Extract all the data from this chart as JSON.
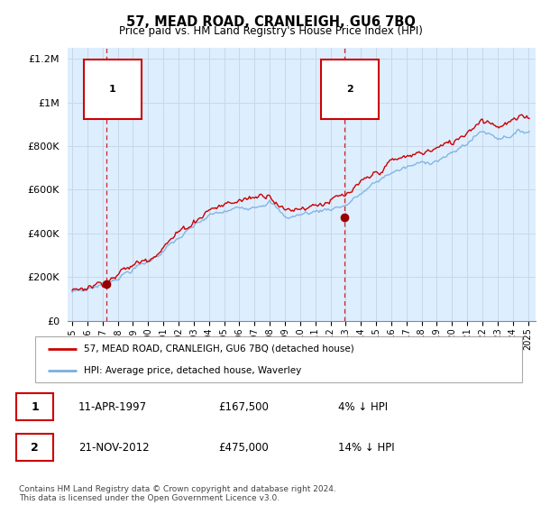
{
  "title": "57, MEAD ROAD, CRANLEIGH, GU6 7BQ",
  "subtitle": "Price paid vs. HM Land Registry's House Price Index (HPI)",
  "legend_label_red": "57, MEAD ROAD, CRANLEIGH, GU6 7BQ (detached house)",
  "legend_label_blue": "HPI: Average price, detached house, Waverley",
  "annotation1_date": "11-APR-1997",
  "annotation1_price": "£167,500",
  "annotation1_hpi": "4% ↓ HPI",
  "annotation2_date": "21-NOV-2012",
  "annotation2_price": "£475,000",
  "annotation2_hpi": "14% ↓ HPI",
  "footnote": "Contains HM Land Registry data © Crown copyright and database right 2024.\nThis data is licensed under the Open Government Licence v3.0.",
  "sale1_year": 1997.28,
  "sale1_price": 167500,
  "sale2_year": 2012.9,
  "sale2_price": 475000,
  "red_color": "#cc0000",
  "blue_color": "#7aafe0",
  "vline_color": "#cc0000",
  "dot_color": "#990000",
  "grid_color": "#c8d8e8",
  "chart_bg": "#ddeeff",
  "background_color": "#ffffff",
  "ylim": [
    0,
    1250000
  ],
  "xlim_start": 1994.7,
  "xlim_end": 2025.5
}
